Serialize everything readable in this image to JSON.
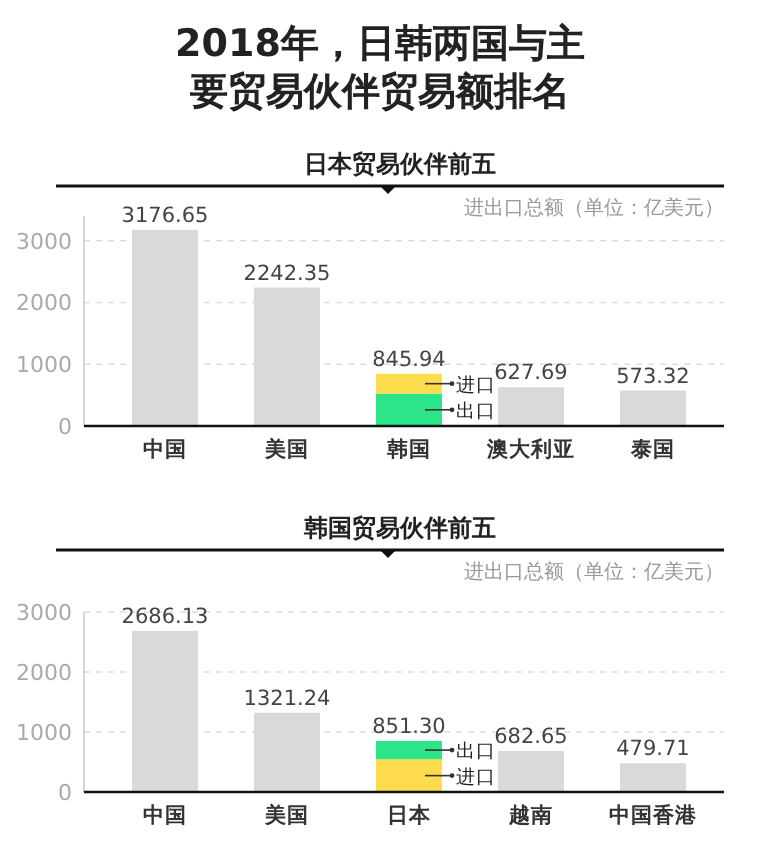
{
  "chart_data": [
    {
      "type": "bar",
      "title": "2018年，日韩两国与主要贸易伙伴贸易额排名",
      "subtitle": "日本贸易伙伴前五",
      "annotations": [
        "进出口总额（单位：亿美元）"
      ],
      "categories": [
        "中国",
        "美国",
        "韩国",
        "澳大利亚",
        "泰国"
      ],
      "stacked": true,
      "ylim": [
        0,
        3400
      ],
      "yticks": [
        0,
        1000,
        2000,
        3000
      ],
      "grid": "y",
      "series": [
        {
          "color": "#d9d9d9",
          "values": [
            3176.65,
            2242.35,
            null,
            627.69,
            573.32
          ]
        },
        {
          "name": "出口",
          "color": "#2ee68a",
          "values": [
            null,
            null,
            525,
            null,
            null
          ]
        },
        {
          "name": "进口",
          "color": "#fcdc4d",
          "values": [
            null,
            null,
            320.94,
            null,
            null
          ]
        }
      ],
      "totals": [
        "3176.65",
        "2242.35",
        "845.94",
        "627.69",
        "573.32"
      ]
    },
    {
      "type": "bar",
      "title": "韩国贸易伙伴前五",
      "annotations": [
        "进出口总额（单位：亿美元）"
      ],
      "categories": [
        "中国",
        "美国",
        "日本",
        "越南",
        "中国香港"
      ],
      "stacked": true,
      "ylim": [
        0,
        3000
      ],
      "yticks": [
        0,
        1000,
        2000,
        3000
      ],
      "grid": "y",
      "series": [
        {
          "color": "#d9d9d9",
          "values": [
            2686.13,
            1321.24,
            null,
            682.65,
            479.71
          ]
        },
        {
          "name": "进口",
          "color": "#fcdc4d",
          "values": [
            null,
            null,
            546,
            null,
            null
          ]
        },
        {
          "name": "出口",
          "color": "#2ee68a",
          "values": [
            null,
            null,
            305.3,
            null,
            null
          ]
        }
      ],
      "totals": [
        "2686.13",
        "1321.24",
        "851.30",
        "682.65",
        "479.71"
      ]
    }
  ]
}
